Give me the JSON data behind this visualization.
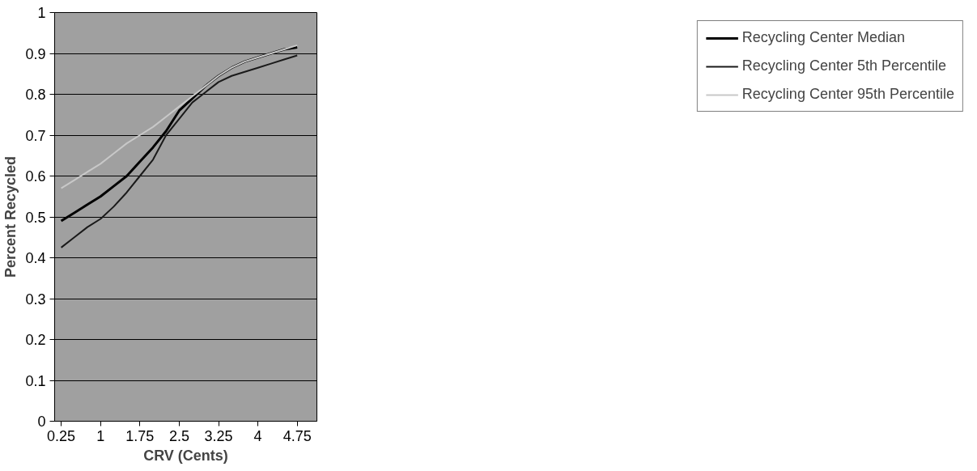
{
  "chart_data": {
    "type": "line",
    "xlabel": "CRV (Cents)",
    "ylabel": "Percent Recycled",
    "x": [
      0.25,
      0.5,
      0.75,
      1,
      1.25,
      1.5,
      1.75,
      2,
      2.25,
      2.5,
      2.75,
      3,
      3.25,
      3.5,
      3.75,
      4,
      4.25,
      4.5,
      4.75
    ],
    "xlim": [
      0.125,
      5.125
    ],
    "xticks": [
      0.25,
      1,
      1.75,
      2.5,
      3.25,
      4,
      4.75
    ],
    "ylim": [
      0,
      1
    ],
    "yticks": [
      0,
      0.1,
      0.2,
      0.3,
      0.4,
      0.5,
      0.6,
      0.7,
      0.8,
      0.9,
      1
    ],
    "grid": "y",
    "legend": "right",
    "marker": "none",
    "line_style": "solid",
    "series": [
      {
        "name": "Recycling Center Median",
        "color": "#000000",
        "values": [
          0.49,
          0.51,
          0.53,
          0.55,
          0.575,
          0.6,
          0.635,
          0.67,
          0.71,
          0.76,
          0.79,
          0.82,
          0.845,
          0.865,
          0.88,
          0.89,
          0.9,
          0.91,
          0.915
        ]
      },
      {
        "name": "Recycling Center 5th Percentile",
        "color": "#1a1a1a",
        "values": [
          0.425,
          0.45,
          0.475,
          0.495,
          0.525,
          0.56,
          0.6,
          0.64,
          0.7,
          0.74,
          0.78,
          0.805,
          0.83,
          0.845,
          0.855,
          0.865,
          0.875,
          0.885,
          0.895
        ]
      },
      {
        "name": "Recycling Center 95th Percentile",
        "color": "#c8c8c8",
        "values": [
          0.57,
          0.59,
          0.61,
          0.63,
          0.655,
          0.68,
          0.7,
          0.72,
          0.745,
          0.77,
          0.795,
          0.82,
          0.845,
          0.865,
          0.88,
          0.89,
          0.9,
          0.91,
          0.92
        ]
      }
    ]
  }
}
